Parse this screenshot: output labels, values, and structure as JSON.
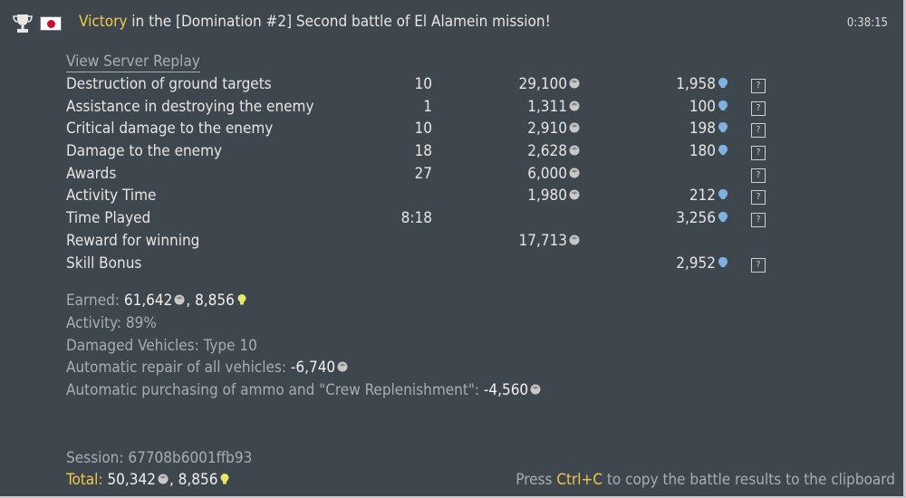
{
  "header": {
    "result_word": "Victory",
    "title_rest": " in the [Domination #2] Second battle of El Alamein mission!",
    "time": "0:38:15",
    "icons": [
      "trophy-icon",
      "japan-flag-icon"
    ]
  },
  "replay_link": "View Server Replay",
  "rows": [
    {
      "label": "Destruction of ground targets",
      "count": "10",
      "sl": "29,100",
      "rp": "1,958",
      "help": "?"
    },
    {
      "label": "Assistance in destroying the enemy",
      "count": "1",
      "sl": "1,311",
      "rp": "100",
      "help": "?"
    },
    {
      "label": "Critical damage to the enemy",
      "count": "10",
      "sl": "2,910",
      "rp": "198",
      "help": "?"
    },
    {
      "label": "Damage to the enemy",
      "count": "18",
      "sl": "2,628",
      "rp": "180",
      "help": "?"
    },
    {
      "label": "Awards",
      "count": "27",
      "sl": "6,000",
      "rp": "",
      "help": "?"
    },
    {
      "label": "Activity Time",
      "count": "",
      "sl": "1,980",
      "rp": "212",
      "help": "?"
    },
    {
      "label": "Time Played",
      "count": "8:18",
      "sl": "",
      "rp": "3,256",
      "help": "?"
    },
    {
      "label": "Reward for winning",
      "count": "",
      "sl": "17,713",
      "rp": "",
      "help": ""
    },
    {
      "label": "Skill Bonus",
      "count": "",
      "sl": "",
      "rp": "2,952",
      "help": "?"
    }
  ],
  "summary": {
    "earned_label": "Earned: ",
    "earned_sl": "61,642",
    "earned_sep": ", ",
    "earned_rp": "8,856",
    "activity": "Activity: 89%",
    "damaged": "Damaged Vehicles: Type 10",
    "repair_label": "Automatic repair of all vehicles: ",
    "repair_value": "-6,740",
    "ammo_label": "Automatic purchasing of ammo and \"Crew Replenishment\": ",
    "ammo_value": "-4,560"
  },
  "session": "Session: 67708b6001ffb93",
  "total": {
    "label": "Total:",
    "sl": " 50,342",
    "sep": ", ",
    "rp": "8,856"
  },
  "clipboard_hint": {
    "pre": "Press ",
    "key": "Ctrl+C",
    "post": " to copy the battle results to the clipboard"
  },
  "colors": {
    "background": "#3f474e",
    "accent": "#f2c94c",
    "muted": "#a8adb2",
    "rp_icon": "#7fb2e0",
    "bulb_icon": "#e8e86a"
  }
}
